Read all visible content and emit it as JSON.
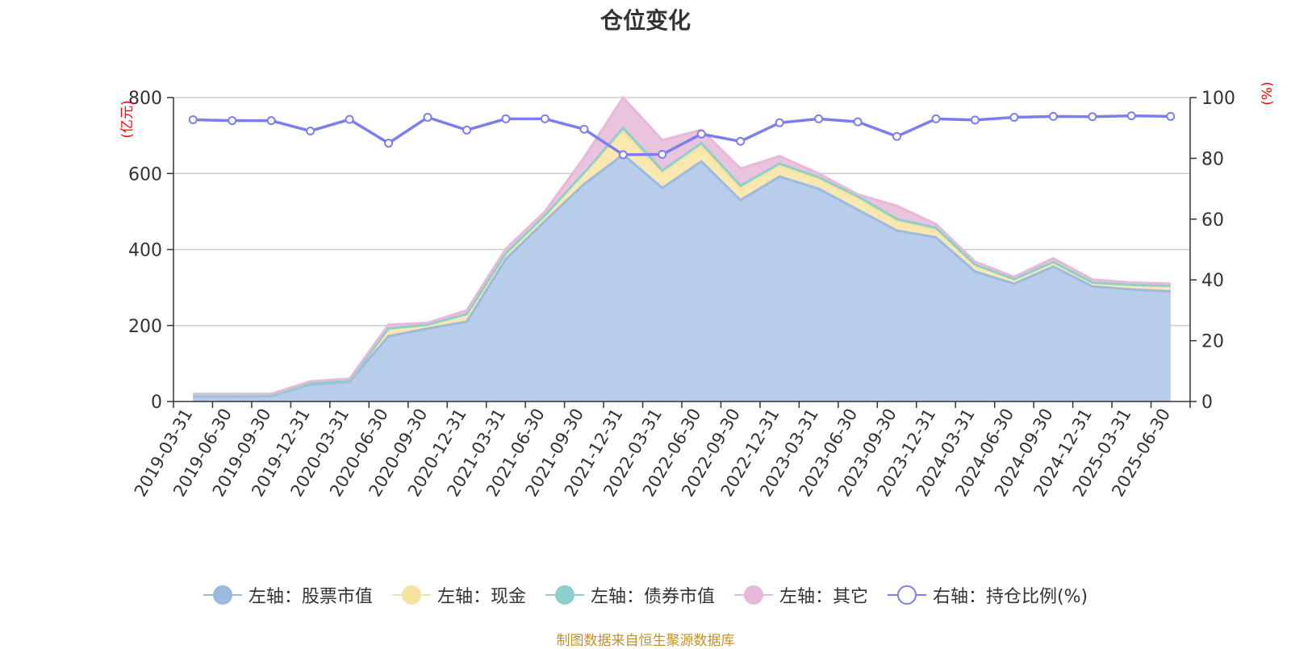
{
  "chart_data": {
    "type": "area",
    "title": "仓位变化",
    "x": [
      "2019-03-31",
      "2019-06-30",
      "2019-09-30",
      "2019-12-31",
      "2020-03-31",
      "2020-06-30",
      "2020-09-30",
      "2020-12-31",
      "2021-03-31",
      "2021-06-30",
      "2021-09-30",
      "2021-12-31",
      "2022-03-31",
      "2022-06-30",
      "2022-09-30",
      "2022-12-31",
      "2023-03-31",
      "2023-06-30",
      "2023-09-30",
      "2023-12-31",
      "2024-03-31",
      "2024-06-30",
      "2024-09-30",
      "2024-12-31",
      "2025-03-31",
      "2025-06-30"
    ],
    "ylabel_left": "(亿元)",
    "ylabel_right": "(%)",
    "ylim_left": [
      0,
      800
    ],
    "ylim_right": [
      0,
      100
    ],
    "yticks_left": [
      0,
      200,
      400,
      600,
      800
    ],
    "yticks_right": [
      0,
      20,
      40,
      60,
      80,
      100
    ],
    "stacked": true,
    "grid": true,
    "legend_position": "bottom",
    "series": [
      {
        "name": "左轴：股票市值",
        "axis": "left",
        "color": "#9cb9e0",
        "fill": "#b8cdea",
        "values": [
          13,
          13,
          14,
          45,
          52,
          172,
          192,
          210,
          375,
          475,
          572,
          650,
          562,
          632,
          530,
          592,
          560,
          505,
          450,
          432,
          342,
          310,
          355,
          303,
          295,
          290
        ]
      },
      {
        "name": "左轴：现金",
        "axis": "left",
        "color": "#f7e3a1",
        "fill": "#f9e8b0",
        "values": [
          3,
          3,
          3,
          3,
          3,
          20,
          10,
          20,
          15,
          15,
          30,
          60,
          40,
          40,
          30,
          28,
          25,
          30,
          25,
          20,
          18,
          12,
          12,
          10,
          12,
          14
        ]
      },
      {
        "name": "左轴：债券市值",
        "axis": "left",
        "color": "#8dd0cb",
        "fill": "#9fd6d1",
        "values": [
          0,
          0,
          0,
          0,
          0,
          0,
          0,
          0,
          0,
          0,
          0,
          10,
          6,
          8,
          8,
          6,
          5,
          5,
          5,
          5,
          0,
          0,
          0,
          0,
          0,
          0
        ]
      },
      {
        "name": "左轴：其它",
        "axis": "left",
        "color": "#e6b8da",
        "fill": "#eac3df",
        "values": [
          4,
          4,
          3,
          5,
          5,
          10,
          5,
          10,
          12,
          10,
          40,
          80,
          80,
          35,
          45,
          20,
          10,
          5,
          35,
          10,
          8,
          6,
          10,
          8,
          6,
          6
        ]
      },
      {
        "name": "右轴：持仓比例(%)",
        "axis": "right",
        "type": "line",
        "color": "#7b7ef0",
        "values": [
          92.7,
          92.4,
          92.4,
          89.0,
          92.8,
          85.0,
          93.5,
          89.3,
          93.0,
          93.0,
          89.6,
          81.2,
          81.3,
          88.0,
          85.6,
          91.7,
          93.0,
          92.0,
          87.2,
          93.0,
          92.6,
          93.5,
          93.8,
          93.7,
          94.0,
          93.8
        ]
      }
    ]
  },
  "source_note": "制图数据来自恒生聚源数据库"
}
